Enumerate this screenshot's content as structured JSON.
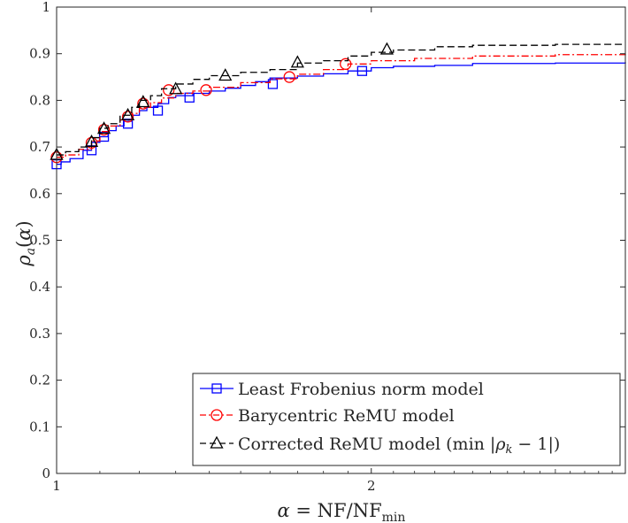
{
  "chart_data": {
    "type": "line",
    "xlabel": "α = NF/NF_min",
    "ylabel": "ρ_a(α)",
    "xscale": "log",
    "xlim": [
      1,
      3.5
    ],
    "ylim": [
      0,
      1
    ],
    "x_ticks": [
      {
        "value": 1,
        "label": "1"
      },
      {
        "value": 2,
        "label": "2"
      }
    ],
    "y_ticks": [
      {
        "value": 0,
        "label": "0"
      },
      {
        "value": 0.1,
        "label": "0.1"
      },
      {
        "value": 0.2,
        "label": "0.2"
      },
      {
        "value": 0.3,
        "label": "0.3"
      },
      {
        "value": 0.4,
        "label": "0.4"
      },
      {
        "value": 0.5,
        "label": "0.5"
      },
      {
        "value": 0.6,
        "label": "0.6"
      },
      {
        "value": 0.7,
        "label": "0.7"
      },
      {
        "value": 0.8,
        "label": "0.8"
      },
      {
        "value": 0.9,
        "label": "0.9"
      },
      {
        "value": 1,
        "label": "1"
      }
    ],
    "grid": false,
    "legend_position": "bottom-right",
    "series": [
      {
        "name": "Least Frobenius norm model",
        "color": "#0000ff",
        "dash": "solid",
        "marker": "square",
        "x": [
          1.0,
          1.01,
          1.03,
          1.06,
          1.08,
          1.1,
          1.12,
          1.14,
          1.16,
          1.18,
          1.2,
          1.22,
          1.25,
          1.28,
          1.3,
          1.35,
          1.4,
          1.45,
          1.5,
          1.55,
          1.6,
          1.7,
          1.8,
          1.9,
          2.0,
          2.1,
          2.3,
          2.5,
          3.0,
          3.5
        ],
        "y": [
          0.663,
          0.668,
          0.675,
          0.693,
          0.71,
          0.722,
          0.735,
          0.745,
          0.755,
          0.768,
          0.778,
          0.785,
          0.793,
          0.806,
          0.81,
          0.815,
          0.82,
          0.826,
          0.832,
          0.84,
          0.848,
          0.852,
          0.857,
          0.863,
          0.87,
          0.873,
          0.875,
          0.879,
          0.88,
          0.882
        ],
        "marker_x": [
          1.0,
          1.08,
          1.11,
          1.17,
          1.25,
          1.34,
          1.61,
          1.96
        ],
        "marker_y": [
          0.663,
          0.693,
          0.722,
          0.75,
          0.778,
          0.806,
          0.835,
          0.863
        ]
      },
      {
        "name": "Barycentric ReMU model",
        "color": "#ff0000",
        "dash": "dash-dot",
        "marker": "circle",
        "x": [
          1.0,
          1.02,
          1.05,
          1.08,
          1.1,
          1.12,
          1.15,
          1.18,
          1.2,
          1.23,
          1.26,
          1.3,
          1.35,
          1.4,
          1.5,
          1.6,
          1.7,
          1.8,
          1.9,
          2.0,
          2.2,
          2.5,
          3.0,
          3.5
        ],
        "y": [
          0.678,
          0.683,
          0.695,
          0.713,
          0.733,
          0.745,
          0.758,
          0.772,
          0.785,
          0.795,
          0.805,
          0.815,
          0.82,
          0.828,
          0.838,
          0.846,
          0.856,
          0.866,
          0.878,
          0.885,
          0.89,
          0.895,
          0.898,
          0.9
        ],
        "marker_x": [
          1.0,
          1.08,
          1.11,
          1.17,
          1.21,
          1.28,
          1.39,
          1.67,
          1.89
        ],
        "marker_y": [
          0.678,
          0.709,
          0.737,
          0.765,
          0.793,
          0.822,
          0.822,
          0.85,
          0.878
        ]
      },
      {
        "name": "Corrected ReMU model (min|ρ_k − 1|)",
        "color": "#000000",
        "dash": "dashed",
        "marker": "triangle",
        "x": [
          1.0,
          1.02,
          1.05,
          1.08,
          1.1,
          1.12,
          1.15,
          1.18,
          1.2,
          1.23,
          1.26,
          1.3,
          1.35,
          1.4,
          1.5,
          1.6,
          1.7,
          1.8,
          1.9,
          2.0,
          2.1,
          2.3,
          2.5,
          3.0,
          3.5
        ],
        "y": [
          0.683,
          0.69,
          0.7,
          0.72,
          0.74,
          0.75,
          0.768,
          0.785,
          0.8,
          0.81,
          0.825,
          0.835,
          0.845,
          0.853,
          0.86,
          0.866,
          0.88,
          0.885,
          0.895,
          0.903,
          0.908,
          0.915,
          0.918,
          0.92,
          0.92
        ],
        "marker_x": [
          1.0,
          1.08,
          1.11,
          1.17,
          1.21,
          1.3,
          1.45,
          1.7,
          2.07
        ],
        "marker_y": [
          0.683,
          0.711,
          0.739,
          0.768,
          0.796,
          0.824,
          0.853,
          0.881,
          0.909
        ]
      }
    ]
  }
}
